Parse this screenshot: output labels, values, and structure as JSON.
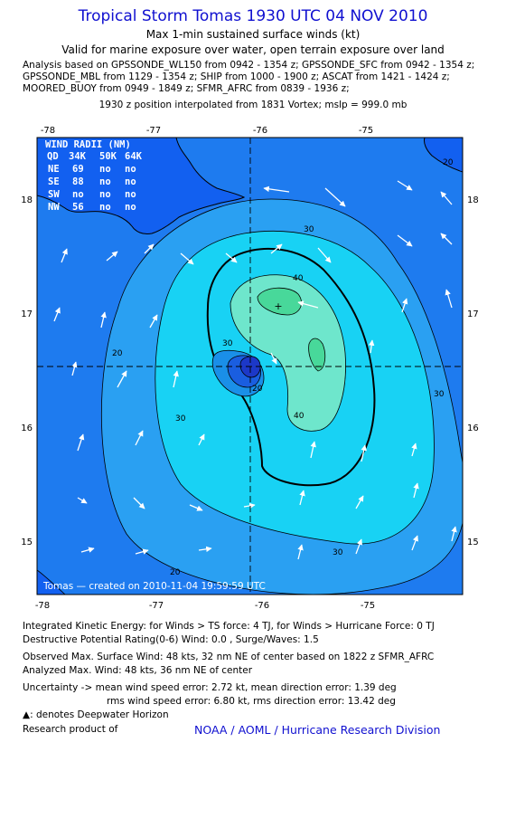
{
  "header": {
    "title": "Tropical Storm Tomas 1930 UTC 04 NOV 2010",
    "subtitle": "Max 1-min sustained surface winds (kt)",
    "validity": "Valid for marine exposure over water, open terrain exposure over land",
    "analysis_lines": [
      "Analysis based on GPSSONDE_WL150 from 0942 - 1354 z; GPSSONDE_SFC from 0942 - 1354 z;",
      "GPSSONDE_MBL from 1129 - 1354 z; SHIP from 1000 - 1900 z; ASCAT from 1421 - 1424 z;",
      "MOORED_BUOY from 0949 - 1849 z; SFMR_AFRC from 0839 - 1936 z;"
    ],
    "position_note": "1930 z position interpolated from 1831 Vortex; mslp = 999.0 mb"
  },
  "map": {
    "lon_ticks": [
      "-78",
      "-77",
      "-76",
      "-75"
    ],
    "lat_ticks": [
      "18",
      "17",
      "16",
      "15"
    ],
    "lon_range": [
      -78.0,
      -73.9
    ],
    "lat_range": [
      14.5,
      18.5
    ],
    "center": {
      "lon": -76.0,
      "lat": 16.53
    },
    "max_wind_marker": {
      "lon": -75.75,
      "lat": 17.1
    },
    "contour_labels": [
      "20",
      "20",
      "20",
      "30",
      "30",
      "30",
      "30",
      "30",
      "40",
      "40",
      "20"
    ],
    "created_note": "Tomas — created on 2010-11-04 19:59:59 UTC",
    "colors": {
      "band_lt20": "#1e7bef",
      "band_20_30": "#2aa0f2",
      "band_30_40": "#18d2f4",
      "band_40_45": "#6ee6cc",
      "band_45_50": "#48d89a",
      "core": "#1c38c8",
      "land": "#1260f0"
    }
  },
  "wind_radii": {
    "title": "WIND RADII (NM)",
    "header": [
      "QD",
      "34K",
      "50K",
      "64K"
    ],
    "rows": [
      [
        "NE",
        "69",
        "no",
        "no"
      ],
      [
        "SE",
        "88",
        "no",
        "no"
      ],
      [
        "SW",
        "no",
        "no",
        "no"
      ],
      [
        "NW",
        "56",
        "no",
        "no"
      ]
    ]
  },
  "footer": {
    "ike": "Integrated Kinetic Energy:  for Winds > TS force: 4 TJ,  for Winds > Hurricane Force: 0 TJ",
    "dpr": "Destructive Potential Rating(0-6)   Wind: 0.0 , Surge/Waves: 1.5",
    "obs_max": "Observed Max. Surface Wind: 48 kts, 32 nm NE of center based on 1822 z SFMR_AFRC",
    "ana_max": "Analyzed Max. Wind: 48 kts, 36 nm NE of center",
    "unc1": "Uncertainty -> mean wind speed error: 2.72 kt,   mean direction error: 1.39 deg",
    "unc2": "rms wind speed error: 6.80 kt,   rms direction error: 13.42 deg",
    "dwh_note": ": denotes Deepwater Horizon",
    "research": "Research product of",
    "org": "NOAA / AOML / Hurricane Research Division"
  }
}
